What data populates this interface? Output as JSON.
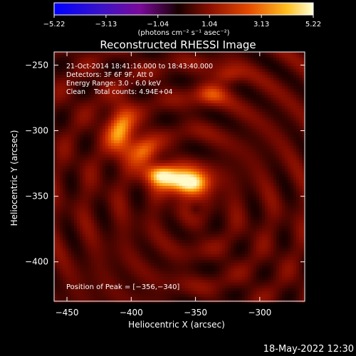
{
  "colorbar": {
    "ticks": [
      "−5.22",
      "−3.13",
      "−1.04",
      "1.04",
      "3.13",
      "5.22"
    ],
    "tick_values": [
      -5.22,
      -3.13,
      -1.04,
      1.04,
      3.13,
      5.22
    ],
    "range": [
      -5.22,
      5.22
    ],
    "unit_label": "(photons cm⁻² s⁻¹ asec⁻²)"
  },
  "chart_data": {
    "type": "heatmap",
    "title": "Reconstructed RHESSI Image",
    "xlabel": "Heliocentric X (arcsec)",
    "ylabel": "Heliocentric Y (arcsec)",
    "xlim": [
      -460,
      -265
    ],
    "ylim": [
      -430,
      -240
    ],
    "x_ticks": [
      -450,
      -400,
      -350,
      -300
    ],
    "y_ticks": [
      -250,
      -300,
      -350,
      -400
    ],
    "x_tick_labels": [
      "−450",
      "−400",
      "−350",
      "−300"
    ],
    "y_tick_labels": [
      "−250",
      "−300",
      "−350",
      "−400"
    ],
    "colormap": "rhessi-hot",
    "sources": [
      {
        "x": -356,
        "y": -340,
        "peak": 5.22,
        "sx": 12,
        "sy": 7
      },
      {
        "x": -378,
        "y": -333,
        "peak": 3.6,
        "sx": 9,
        "sy": 6
      },
      {
        "x": -408,
        "y": -300,
        "peak": 3.2,
        "sx": 8,
        "sy": 14
      },
      {
        "x": -390,
        "y": -315,
        "peak": 2.4,
        "sx": 8,
        "sy": 8
      },
      {
        "x": -338,
        "y": -272,
        "peak": 2.0,
        "sx": 9,
        "sy": 6
      },
      {
        "x": -325,
        "y": -258,
        "peak": 1.6,
        "sx": 8,
        "sy": 5
      }
    ],
    "annotations": [
      "21-Oct-2014 18:41:16.000 to 18:43:40.000",
      "Detectors: 3F 6F 9F, Att 0",
      "Energy Range: 3.0 - 6.0 keV",
      "Clean    Total counts: 4.94E+04"
    ],
    "peak_label": "Position of Peak = [−356,−340]"
  },
  "timestamp": "18-May-2022 12:30"
}
